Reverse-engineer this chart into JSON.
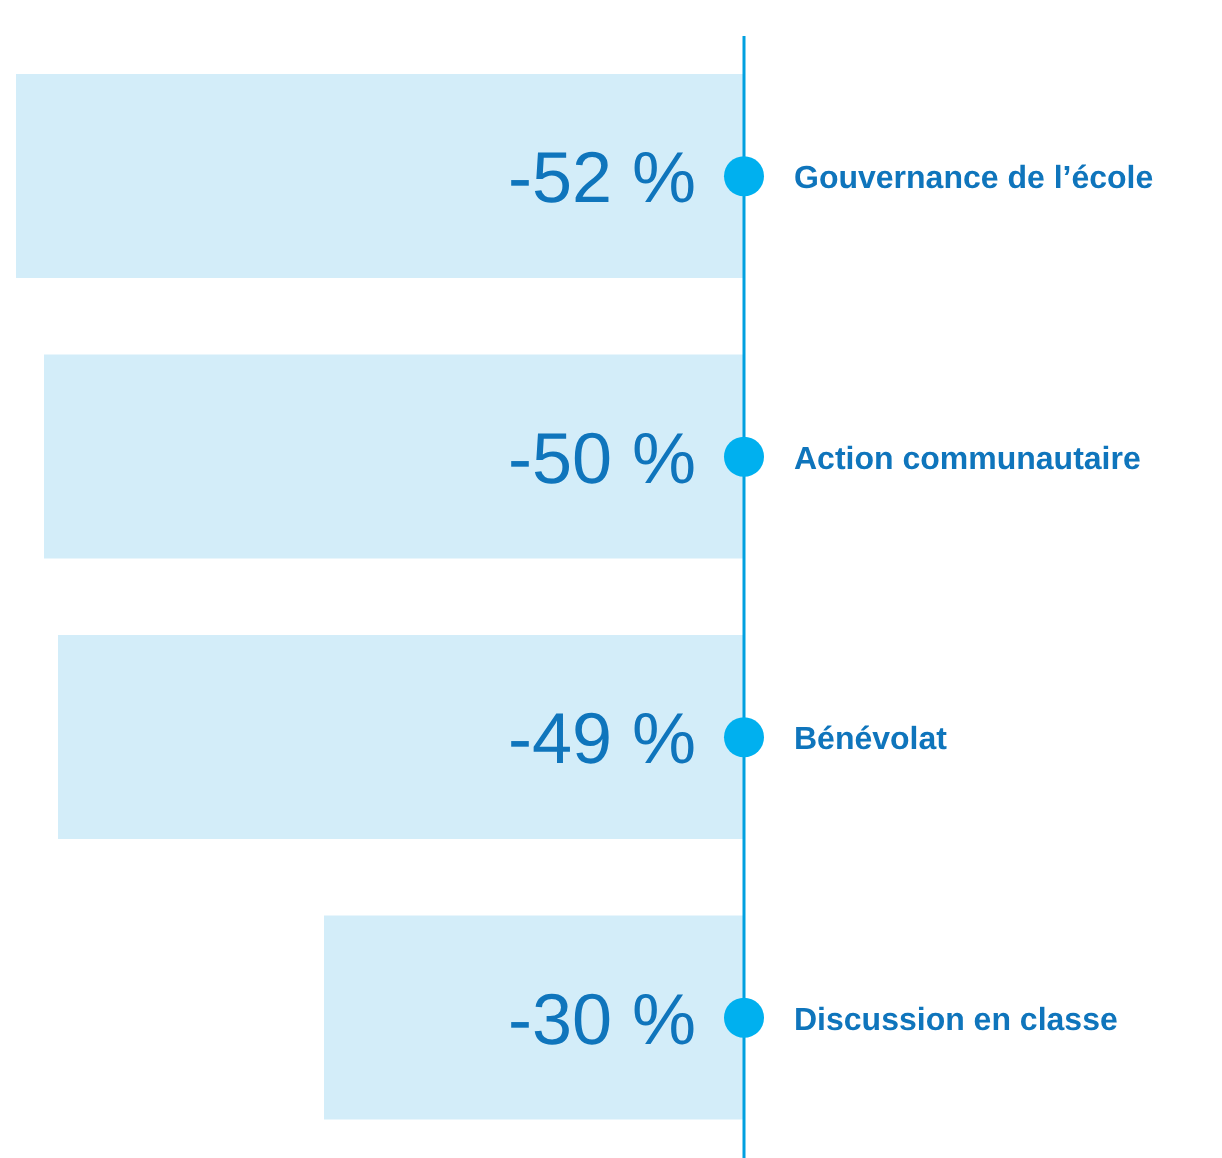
{
  "chart_data": {
    "type": "bar",
    "orientation": "horizontal",
    "categories": [
      "Gouvernance de l’école",
      "Action communautaire",
      "Bénévolat",
      "Discussion en classe"
    ],
    "values": [
      -52,
      -50,
      -49,
      -30
    ],
    "value_labels": [
      "-52 %",
      "-50 %",
      "-49 %",
      "-30 %"
    ],
    "color": "#d3edf9"
  }
}
